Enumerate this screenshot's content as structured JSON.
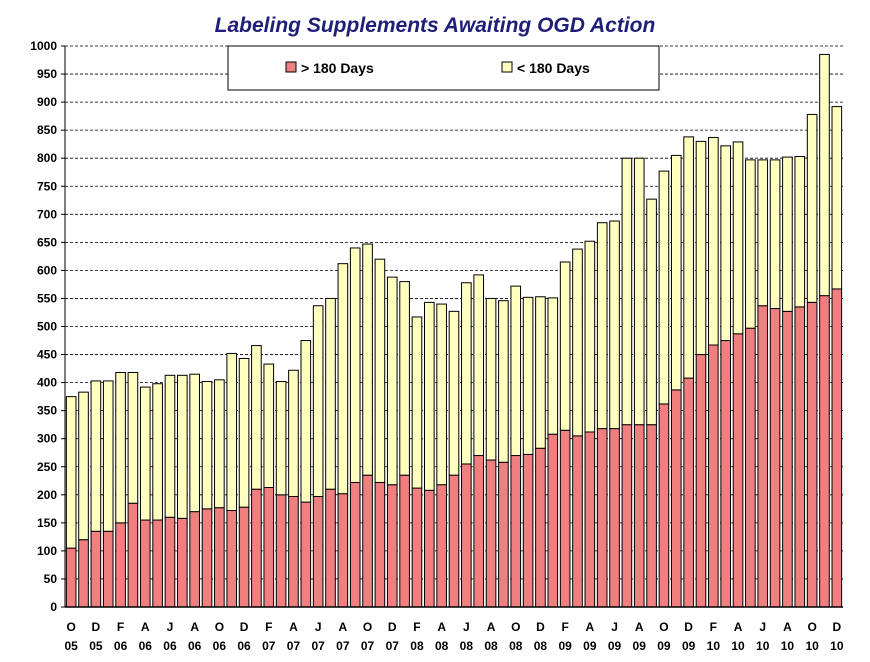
{
  "chart_data": {
    "type": "bar",
    "stacked": true,
    "title": "Labeling Supplements Awaiting OGD Action",
    "xlabel": "",
    "ylabel": "",
    "ylim": [
      0,
      1000
    ],
    "ytick_step": 50,
    "grid": "horizontal-dashed",
    "legend_placement": "top-center",
    "categories": [
      "O 05",
      "N 05",
      "D 05",
      "J 06",
      "F 06",
      "M 06",
      "A 06",
      "M 06",
      "J 06",
      "J 06",
      "A 06",
      "S 06",
      "O 06",
      "N 06",
      "D 06",
      "J 07",
      "F 07",
      "M 07",
      "A 07",
      "M 07",
      "J 07",
      "J 07",
      "A 07",
      "S 07",
      "O 07",
      "N 07",
      "D 07",
      "J 08",
      "F 08",
      "M 08",
      "A 08",
      "M 08",
      "J 08",
      "J 08",
      "A 08",
      "S 08",
      "O 08",
      "N 08",
      "D 08",
      "J 09",
      "F 09",
      "M 09",
      "A 09",
      "M 09",
      "J 09",
      "J 09",
      "A 09",
      "S 09",
      "O 09",
      "N 09",
      "D 09",
      "J 10",
      "F 10",
      "M 10",
      "A 10",
      "M 10",
      "J 10",
      "J 10",
      "A 10",
      "S 10",
      "O 10",
      "N 10",
      "D 10"
    ],
    "tick_labels": [
      {
        "index": 0,
        "month": "O",
        "year": "05"
      },
      {
        "index": 2,
        "month": "D",
        "year": "05"
      },
      {
        "index": 4,
        "month": "F",
        "year": "06"
      },
      {
        "index": 6,
        "month": "A",
        "year": "06"
      },
      {
        "index": 8,
        "month": "J",
        "year": "06"
      },
      {
        "index": 10,
        "month": "A",
        "year": "06"
      },
      {
        "index": 12,
        "month": "O",
        "year": "06"
      },
      {
        "index": 14,
        "month": "D",
        "year": "06"
      },
      {
        "index": 16,
        "month": "F",
        "year": "07"
      },
      {
        "index": 18,
        "month": "A",
        "year": "07"
      },
      {
        "index": 20,
        "month": "J",
        "year": "07"
      },
      {
        "index": 22,
        "month": "A",
        "year": "07"
      },
      {
        "index": 24,
        "month": "O",
        "year": "07"
      },
      {
        "index": 26,
        "month": "D",
        "year": "07"
      },
      {
        "index": 28,
        "month": "F",
        "year": "08"
      },
      {
        "index": 30,
        "month": "A",
        "year": "08"
      },
      {
        "index": 32,
        "month": "J",
        "year": "08"
      },
      {
        "index": 34,
        "month": "A",
        "year": "08"
      },
      {
        "index": 36,
        "month": "O",
        "year": "08"
      },
      {
        "index": 38,
        "month": "D",
        "year": "08"
      },
      {
        "index": 40,
        "month": "F",
        "year": "09"
      },
      {
        "index": 42,
        "month": "A",
        "year": "09"
      },
      {
        "index": 44,
        "month": "J",
        "year": "09"
      },
      {
        "index": 46,
        "month": "A",
        "year": "09"
      },
      {
        "index": 48,
        "month": "O",
        "year": "09"
      },
      {
        "index": 50,
        "month": "D",
        "year": "09"
      },
      {
        "index": 52,
        "month": "F",
        "year": "10"
      },
      {
        "index": 54,
        "month": "A",
        "year": "10"
      },
      {
        "index": 56,
        "month": "J",
        "year": "10"
      },
      {
        "index": 58,
        "month": "A",
        "year": "10"
      },
      {
        "index": 60,
        "month": "O",
        "year": "10"
      },
      {
        "index": 62,
        "month": "D",
        "year": "10"
      }
    ],
    "series": [
      {
        "name": "> 180 Days",
        "color": "#f08080",
        "values": [
          105,
          120,
          135,
          135,
          150,
          185,
          155,
          155,
          160,
          158,
          170,
          175,
          177,
          172,
          178,
          210,
          213,
          200,
          197,
          187,
          197,
          210,
          202,
          222,
          235,
          222,
          218,
          235,
          212,
          208,
          218,
          235,
          255,
          270,
          262,
          258,
          270,
          272,
          283,
          308,
          315,
          305,
          312,
          318,
          318,
          325,
          325,
          325,
          362,
          387,
          408,
          450,
          467,
          475,
          487,
          497,
          537,
          532,
          527,
          535,
          543,
          555,
          567
        ]
      },
      {
        "name": "< 180 Days",
        "color": "#ffffc0",
        "values": [
          270,
          263,
          268,
          268,
          268,
          233,
          237,
          243,
          253,
          255,
          245,
          227,
          228,
          280,
          265,
          256,
          220,
          202,
          225,
          288,
          340,
          340,
          410,
          418,
          412,
          398,
          370,
          345,
          305,
          335,
          322,
          292,
          323,
          322,
          288,
          288,
          302,
          280,
          270,
          243,
          300,
          333,
          340,
          367,
          370,
          475,
          475,
          402,
          415,
          418,
          430,
          380,
          370,
          347,
          342,
          300,
          260,
          265,
          275,
          268,
          335,
          430,
          325
        ]
      }
    ]
  }
}
